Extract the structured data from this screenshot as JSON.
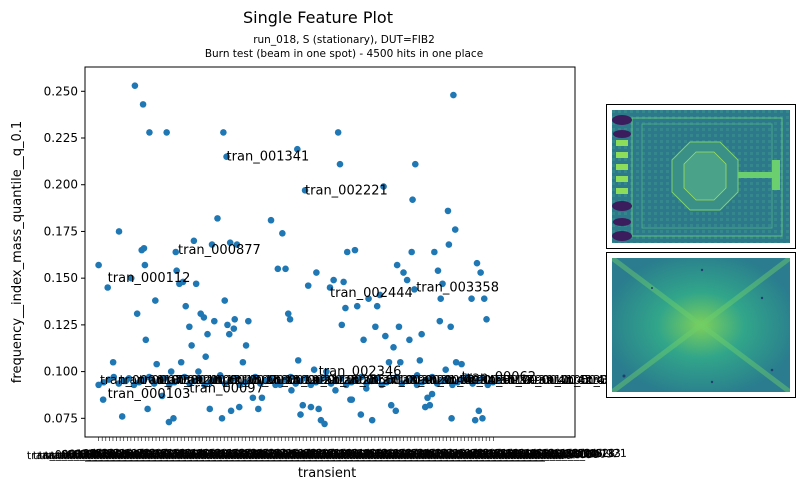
{
  "chart_data": {
    "type": "scatter",
    "title": "Single Feature Plot",
    "subtitle_line1": "run_018, S (stationary), DUT=FIB2",
    "subtitle_line2": "Burn test (beam in one spot) - 4500 hits in one place",
    "xlabel": "transient",
    "ylabel": "frequency__index_mass_quantile__q_0.1",
    "ylim": [
      0.065,
      0.263
    ],
    "yticks": [
      0.075,
      0.1,
      0.125,
      0.15,
      0.175,
      0.2,
      0.225,
      0.25
    ],
    "ytick_labels": [
      "0.075",
      "0.100",
      "0.125",
      "0.150",
      "0.175",
      "0.200",
      "0.225",
      "0.250"
    ],
    "grid": false,
    "color": "#1f77b4",
    "xlim": [
      -0.03,
      1.05
    ],
    "points": [
      [
        0.0,
        0.157
      ],
      [
        0.01,
        0.085
      ],
      [
        0.02,
        0.145
      ],
      [
        0.032,
        0.105
      ],
      [
        0.045,
        0.175
      ],
      [
        0.052,
        0.076
      ],
      [
        0.06,
        0.095
      ],
      [
        0.072,
        0.15
      ],
      [
        0.08,
        0.253
      ],
      [
        0.085,
        0.131
      ],
      [
        0.095,
        0.165
      ],
      [
        0.098,
        0.243
      ],
      [
        0.1,
        0.166
      ],
      [
        0.102,
        0.157
      ],
      [
        0.104,
        0.117
      ],
      [
        0.108,
        0.08
      ],
      [
        0.112,
        0.228
      ],
      [
        0.118,
        0.095
      ],
      [
        0.125,
        0.138
      ],
      [
        0.128,
        0.104
      ],
      [
        0.14,
        0.087
      ],
      [
        0.15,
        0.228
      ],
      [
        0.155,
        0.073
      ],
      [
        0.16,
        0.1
      ],
      [
        0.165,
        0.075
      ],
      [
        0.17,
        0.164
      ],
      [
        0.172,
        0.154
      ],
      [
        0.178,
        0.147
      ],
      [
        0.182,
        0.105
      ],
      [
        0.186,
        0.148
      ],
      [
        0.192,
        0.135
      ],
      [
        0.2,
        0.124
      ],
      [
        0.205,
        0.114
      ],
      [
        0.21,
        0.17
      ],
      [
        0.215,
        0.147
      ],
      [
        0.22,
        0.1
      ],
      [
        0.225,
        0.131
      ],
      [
        0.232,
        0.129
      ],
      [
        0.236,
        0.108
      ],
      [
        0.24,
        0.12
      ],
      [
        0.245,
        0.08
      ],
      [
        0.25,
        0.168
      ],
      [
        0.255,
        0.127
      ],
      [
        0.262,
        0.182
      ],
      [
        0.268,
        0.098
      ],
      [
        0.272,
        0.075
      ],
      [
        0.275,
        0.228
      ],
      [
        0.278,
        0.138
      ],
      [
        0.282,
        0.215
      ],
      [
        0.284,
        0.125
      ],
      [
        0.288,
        0.12
      ],
      [
        0.29,
        0.169
      ],
      [
        0.292,
        0.079
      ],
      [
        0.298,
        0.123
      ],
      [
        0.3,
        0.128
      ],
      [
        0.305,
        0.168
      ],
      [
        0.31,
        0.081
      ],
      [
        0.318,
        0.105
      ],
      [
        0.325,
        0.114
      ],
      [
        0.33,
        0.127
      ],
      [
        0.34,
        0.086
      ],
      [
        0.352,
        0.08
      ],
      [
        0.36,
        0.086
      ],
      [
        0.38,
        0.181
      ],
      [
        0.395,
        0.155
      ],
      [
        0.4,
        0.093
      ],
      [
        0.405,
        0.174
      ],
      [
        0.412,
        0.155
      ],
      [
        0.418,
        0.131
      ],
      [
        0.422,
        0.128
      ],
      [
        0.425,
        0.09
      ],
      [
        0.438,
        0.219
      ],
      [
        0.44,
        0.106
      ],
      [
        0.445,
        0.077
      ],
      [
        0.45,
        0.082
      ],
      [
        0.455,
        0.197
      ],
      [
        0.462,
        0.146
      ],
      [
        0.468,
        0.081
      ],
      [
        0.475,
        0.101
      ],
      [
        0.48,
        0.153
      ],
      [
        0.485,
        0.08
      ],
      [
        0.49,
        0.074
      ],
      [
        0.498,
        0.072
      ],
      [
        0.502,
        0.1
      ],
      [
        0.51,
        0.145
      ],
      [
        0.518,
        0.149
      ],
      [
        0.522,
        0.09
      ],
      [
        0.528,
        0.228
      ],
      [
        0.532,
        0.211
      ],
      [
        0.536,
        0.125
      ],
      [
        0.54,
        0.148
      ],
      [
        0.544,
        0.134
      ],
      [
        0.548,
        0.164
      ],
      [
        0.555,
        0.085
      ],
      [
        0.558,
        0.085
      ],
      [
        0.565,
        0.165
      ],
      [
        0.57,
        0.135
      ],
      [
        0.578,
        0.077
      ],
      [
        0.584,
        0.117
      ],
      [
        0.59,
        0.091
      ],
      [
        0.595,
        0.139
      ],
      [
        0.603,
        0.074
      ],
      [
        0.61,
        0.124
      ],
      [
        0.614,
        0.135
      ],
      [
        0.62,
        0.141
      ],
      [
        0.628,
        0.199
      ],
      [
        0.632,
        0.119
      ],
      [
        0.64,
        0.105
      ],
      [
        0.645,
        0.082
      ],
      [
        0.65,
        0.113
      ],
      [
        0.655,
        0.079
      ],
      [
        0.658,
        0.157
      ],
      [
        0.662,
        0.124
      ],
      [
        0.665,
        0.105
      ],
      [
        0.672,
        0.153
      ],
      [
        0.68,
        0.149
      ],
      [
        0.685,
        0.117
      ],
      [
        0.69,
        0.164
      ],
      [
        0.692,
        0.192
      ],
      [
        0.696,
        0.144
      ],
      [
        0.698,
        0.211
      ],
      [
        0.702,
        0.098
      ],
      [
        0.708,
        0.106
      ],
      [
        0.712,
        0.12
      ],
      [
        0.72,
        0.081
      ],
      [
        0.725,
        0.086
      ],
      [
        0.73,
        0.082
      ],
      [
        0.735,
        0.088
      ],
      [
        0.74,
        0.164
      ],
      [
        0.748,
        0.154
      ],
      [
        0.752,
        0.127
      ],
      [
        0.754,
        0.139
      ],
      [
        0.758,
        0.147
      ],
      [
        0.765,
        0.101
      ],
      [
        0.77,
        0.186
      ],
      [
        0.772,
        0.168
      ],
      [
        0.776,
        0.124
      ],
      [
        0.778,
        0.075
      ],
      [
        0.782,
        0.248
      ],
      [
        0.786,
        0.176
      ],
      [
        0.788,
        0.105
      ],
      [
        0.8,
        0.104
      ],
      [
        0.815,
        0.096
      ],
      [
        0.822,
        0.139
      ],
      [
        0.83,
        0.074
      ],
      [
        0.834,
        0.158
      ],
      [
        0.838,
        0.079
      ],
      [
        0.842,
        0.153
      ],
      [
        0.846,
        0.075
      ],
      [
        0.85,
        0.139
      ],
      [
        0.855,
        0.128
      ]
    ],
    "baseline": {
      "y": 0.095,
      "count": 80
    },
    "annotations": [
      {
        "text": "tran_001341",
        "x": 0.282,
        "y": 0.215
      },
      {
        "text": "tran_002221",
        "x": 0.455,
        "y": 0.197
      },
      {
        "text": "tran_000877",
        "x": 0.175,
        "y": 0.165
      },
      {
        "text": "tran_000112",
        "x": 0.02,
        "y": 0.15
      },
      {
        "text": "tran_002444",
        "x": 0.51,
        "y": 0.142
      },
      {
        "text": "tran_003358",
        "x": 0.7,
        "y": 0.145
      },
      {
        "text": "tran_002346",
        "x": 0.485,
        "y": 0.1
      },
      {
        "text": "tran_000103",
        "x": 0.02,
        "y": 0.088
      },
      {
        "text": "tran_00097",
        "x": 0.2,
        "y": 0.091
      },
      {
        "text": "tran_00062",
        "x": 0.8,
        "y": 0.097
      }
    ],
    "clutter_labels": [
      "tran_000104",
      "tran_000305",
      "tran_000402",
      "tran_000618",
      "tran_000733",
      "tran_000921",
      "tran_001005",
      "tran_001211",
      "tran_001507",
      "tran_001688",
      "tran_001802",
      "tran_001999",
      "tran_002117",
      "tran_002301",
      "tran_002555",
      "tran_002710",
      "tran_002899",
      "tran_003021",
      "tran_003144",
      "tran_003290",
      "tran_003455",
      "tran_003612",
      "tran_003790",
      "tran_003911",
      "tran_004105",
      "tran_004233",
      "tran_004387",
      "tran_004402"
    ]
  },
  "insets": [
    {
      "name": "sensor-layout-image"
    },
    {
      "name": "hitmap-image"
    }
  ]
}
